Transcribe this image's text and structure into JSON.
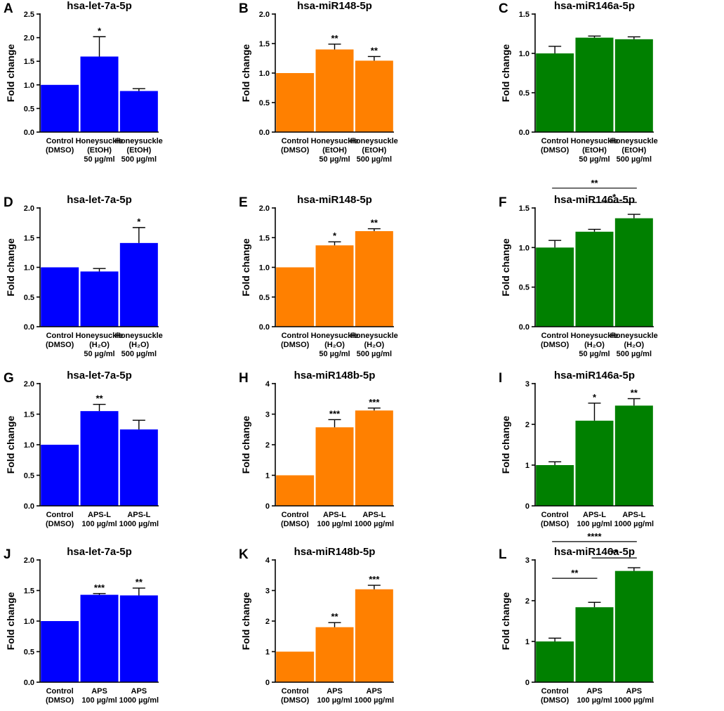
{
  "chart_data": [
    {
      "label": "A",
      "title": "hsa-let-7a-5p",
      "type": "bar",
      "color": "#0000FF",
      "ylabel": "Fold change",
      "ylim": [
        0,
        2.5
      ],
      "yticks": [
        "0.0",
        "0.5",
        "1.0",
        "1.5",
        "2.0",
        "2.5"
      ],
      "categories": [
        [
          "Control",
          "(DMSO)"
        ],
        [
          "Honeysuckle",
          "(EtOH)",
          "50 µg/ml"
        ],
        [
          "Honeysuckle",
          "(EtOH)",
          "500 µg/ml"
        ]
      ],
      "values": [
        1.0,
        1.6,
        0.87
      ],
      "errors": [
        0,
        0.42,
        0.05
      ],
      "significance": [
        "",
        "*",
        ""
      ],
      "brackets": []
    },
    {
      "label": "B",
      "title": "hsa-miR148-5p",
      "type": "bar",
      "color": "#FF8000",
      "ylabel": "Fold change",
      "ylim": [
        0,
        2.0
      ],
      "yticks": [
        "0.0",
        "0.5",
        "1.0",
        "1.5",
        "2.0"
      ],
      "categories": [
        [
          "Control",
          "(DMSO)"
        ],
        [
          "Honeysuckle",
          "(EtOH)",
          "50 µg/ml"
        ],
        [
          "Honeysuckle",
          "(EtOH)",
          "500 µg/ml"
        ]
      ],
      "values": [
        1.0,
        1.4,
        1.21
      ],
      "errors": [
        0,
        0.09,
        0.07
      ],
      "significance": [
        "",
        "**",
        "**"
      ],
      "brackets": []
    },
    {
      "label": "C",
      "title": "hsa-miR146a-5p",
      "type": "bar",
      "color": "#008000",
      "ylabel": "Fold change",
      "ylim": [
        0,
        1.5
      ],
      "yticks": [
        "0.0",
        "0.5",
        "1.0",
        "1.5"
      ],
      "categories": [
        [
          "Control",
          "(DMSO)"
        ],
        [
          "Honeysuckle",
          "(EtOH)",
          "50 µg/ml"
        ],
        [
          "Honeysuckle",
          "(EtOH)",
          "500 µg/ml"
        ]
      ],
      "values": [
        1.0,
        1.2,
        1.18
      ],
      "errors": [
        0.09,
        0.02,
        0.03
      ],
      "significance": [
        "",
        "",
        ""
      ],
      "brackets": []
    },
    {
      "label": "D",
      "title": "hsa-let-7a-5p",
      "type": "bar",
      "color": "#0000FF",
      "ylabel": "Fold change",
      "ylim": [
        0,
        2.0
      ],
      "yticks": [
        "0.0",
        "0.5",
        "1.0",
        "1.5",
        "2.0"
      ],
      "categories": [
        [
          "Control",
          "(DMSO)"
        ],
        [
          "Honeysuckle",
          "(H₂O)",
          "50 µg/ml"
        ],
        [
          "Honeysuckle",
          "(H₂O)",
          "500 µg/ml"
        ]
      ],
      "values": [
        1.0,
        0.93,
        1.41
      ],
      "errors": [
        0,
        0.05,
        0.26
      ],
      "significance": [
        "",
        "",
        "*"
      ],
      "brackets": []
    },
    {
      "label": "E",
      "title": "hsa-miR148-5p",
      "type": "bar",
      "color": "#FF8000",
      "ylabel": "Fold change",
      "ylim": [
        0,
        2.0
      ],
      "yticks": [
        "0.0",
        "0.5",
        "1.0",
        "1.5",
        "2.0"
      ],
      "categories": [
        [
          "Control",
          "(DMSO)"
        ],
        [
          "Honeysuckle",
          "(H₂O)",
          "50 µg/ml"
        ],
        [
          "Honeysuckle",
          "(H₂O)",
          "500 µg/ml"
        ]
      ],
      "values": [
        1.0,
        1.37,
        1.61
      ],
      "errors": [
        0,
        0.06,
        0.04
      ],
      "significance": [
        "",
        "*",
        "**"
      ],
      "brackets": []
    },
    {
      "label": "F",
      "title": "hsa-miR146a-5p",
      "type": "bar",
      "color": "#008000",
      "ylabel": "Fold change",
      "ylim": [
        0,
        1.5
      ],
      "yticks": [
        "0.0",
        "0.5",
        "1.0",
        "1.5"
      ],
      "categories": [
        [
          "Control",
          "(DMSO)"
        ],
        [
          "Honeysuckle",
          "(H₂O)",
          "50 µg/ml"
        ],
        [
          "Honeysuckle",
          "(H₂O)",
          "500 µg/ml"
        ]
      ],
      "values": [
        1.0,
        1.2,
        1.37
      ],
      "errors": [
        0.09,
        0.03,
        0.05
      ],
      "significance": [
        "",
        "",
        ""
      ],
      "brackets": [
        {
          "from": 0,
          "to": 2,
          "y": 1.75,
          "label": "**"
        },
        {
          "from": 1,
          "to": 2,
          "y": 1.57,
          "label": "*"
        }
      ]
    },
    {
      "label": "G",
      "title": "hsa-let-7a-5p",
      "type": "bar",
      "color": "#0000FF",
      "ylabel": "Fold change",
      "ylim": [
        0,
        2.0
      ],
      "yticks": [
        "0.0",
        "0.5",
        "1.0",
        "1.5",
        "2.0"
      ],
      "categories": [
        [
          "Control",
          "(DMSO)"
        ],
        [
          "APS-L",
          "100 µg/ml"
        ],
        [
          "APS-L",
          "1000 µg/ml"
        ]
      ],
      "values": [
        1.0,
        1.55,
        1.25
      ],
      "errors": [
        0,
        0.11,
        0.15
      ],
      "significance": [
        "",
        "**",
        ""
      ],
      "brackets": []
    },
    {
      "label": "H",
      "title": "hsa-miR148b-5p",
      "type": "bar",
      "color": "#FF8000",
      "ylabel": "Fold change",
      "ylim": [
        0,
        4
      ],
      "yticks": [
        "0",
        "1",
        "2",
        "3",
        "4"
      ],
      "categories": [
        [
          "Control",
          "(DMSO)"
        ],
        [
          "APS-L",
          "100 µg/ml"
        ],
        [
          "APS-L",
          "1000 µg/ml"
        ]
      ],
      "values": [
        1.0,
        2.57,
        3.12
      ],
      "errors": [
        0,
        0.25,
        0.08
      ],
      "significance": [
        "",
        "***",
        "***"
      ],
      "brackets": []
    },
    {
      "label": "I",
      "title": "hsa-miR146a-5p",
      "type": "bar",
      "color": "#008000",
      "ylabel": "Fold change",
      "ylim": [
        0,
        3
      ],
      "yticks": [
        "0",
        "1",
        "2",
        "3"
      ],
      "categories": [
        [
          "Control",
          "(DMSO)"
        ],
        [
          "APS-L",
          "100 µg/ml"
        ],
        [
          "APS-L",
          "1000 µg/ml"
        ]
      ],
      "values": [
        1.0,
        2.09,
        2.46
      ],
      "errors": [
        0.08,
        0.43,
        0.17
      ],
      "significance": [
        "",
        "*",
        "**"
      ],
      "brackets": []
    },
    {
      "label": "J",
      "title": "hsa-let-7a-5p",
      "type": "bar",
      "color": "#0000FF",
      "ylabel": "Fold change",
      "ylim": [
        0,
        2.0
      ],
      "yticks": [
        "0.0",
        "0.5",
        "1.0",
        "1.5",
        "2.0"
      ],
      "categories": [
        [
          "Control",
          "(DMSO)"
        ],
        [
          "APS",
          "100 µg/ml"
        ],
        [
          "APS",
          "1000 µg/ml"
        ]
      ],
      "values": [
        1.0,
        1.43,
        1.42
      ],
      "errors": [
        0,
        0.02,
        0.12
      ],
      "significance": [
        "",
        "***",
        "**"
      ],
      "brackets": []
    },
    {
      "label": "K",
      "title": "hsa-miR148b-5p",
      "type": "bar",
      "color": "#FF8000",
      "ylabel": "Fold change",
      "ylim": [
        0,
        4
      ],
      "yticks": [
        "0",
        "1",
        "2",
        "3",
        "4"
      ],
      "categories": [
        [
          "Control",
          "(DMSO)"
        ],
        [
          "APS",
          "100 µg/ml"
        ],
        [
          "APS",
          "1000 µg/ml"
        ]
      ],
      "values": [
        1.0,
        1.8,
        3.04
      ],
      "errors": [
        0,
        0.15,
        0.13
      ],
      "significance": [
        "",
        "**",
        "***"
      ],
      "brackets": []
    },
    {
      "label": "L",
      "title": "hsa-miR146a-5p",
      "type": "bar",
      "color": "#008000",
      "ylabel": "Fold change",
      "ylim": [
        0,
        3
      ],
      "yticks": [
        "0",
        "1",
        "2",
        "3"
      ],
      "categories": [
        [
          "Control",
          "(DMSO)"
        ],
        [
          "APS",
          "100 µg/ml"
        ],
        [
          "APS",
          "1000 µg/ml"
        ]
      ],
      "values": [
        1.0,
        1.84,
        2.73
      ],
      "errors": [
        0.08,
        0.12,
        0.08
      ],
      "significance": [
        "",
        "",
        ""
      ],
      "brackets": [
        {
          "from": 0,
          "to": 2,
          "y": 3.45,
          "label": "****"
        },
        {
          "from": 1,
          "to": 2,
          "y": 3.05,
          "label": "**"
        },
        {
          "from": 0,
          "to": 1,
          "y": 2.55,
          "label": "**"
        }
      ]
    }
  ]
}
